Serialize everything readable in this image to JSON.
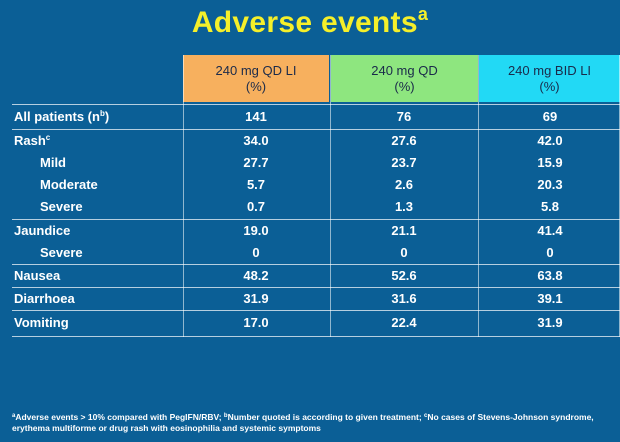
{
  "title": {
    "text": "Adverse events",
    "sup": "a"
  },
  "columns": [
    {
      "line1": "240 mg QD LI",
      "line2": "(%)",
      "color": "#f7b05e"
    },
    {
      "line1": "240 mg QD",
      "line2": "(%)",
      "color": "#8ee67f"
    },
    {
      "line1": "240 mg BID LI",
      "line2": "(%)",
      "color": "#22d9f5"
    }
  ],
  "rows": [
    {
      "label": "All patients (n",
      "sup": "b",
      "suffix": ")",
      "values": [
        "141",
        "76",
        "69"
      ]
    },
    {
      "label": "Rash",
      "sup": "c",
      "values": [
        "34.0",
        "27.6",
        "42.0"
      ]
    },
    {
      "label": "Mild",
      "values": [
        "27.7",
        "23.7",
        "15.9"
      ]
    },
    {
      "label": "Moderate",
      "values": [
        "5.7",
        "2.6",
        "20.3"
      ]
    },
    {
      "label": "Severe",
      "values": [
        "0.7",
        "1.3",
        "5.8"
      ]
    },
    {
      "label": "Jaundice",
      "values": [
        "19.0",
        "21.1",
        "41.4"
      ]
    },
    {
      "label": "Severe",
      "values": [
        "0",
        "0",
        "0"
      ]
    },
    {
      "label": "Nausea",
      "values": [
        "48.2",
        "52.6",
        "63.8"
      ]
    },
    {
      "label": "Diarrhoea",
      "values": [
        "31.9",
        "31.6",
        "39.1"
      ]
    },
    {
      "label": "Vomiting",
      "values": [
        "17.0",
        "22.4",
        "31.9"
      ]
    }
  ],
  "footnote": {
    "a_mark": "a",
    "a_text": "Adverse events > 10% compared with PegIFN/RBV; ",
    "b_mark": "b",
    "b_text": "Number quoted is according to given treatment; ",
    "c_mark": "c",
    "c_text": "No cases of Stevens-Johnson syndrome, erythema multiforme or drug rash with eosinophilia and systemic symptoms"
  }
}
